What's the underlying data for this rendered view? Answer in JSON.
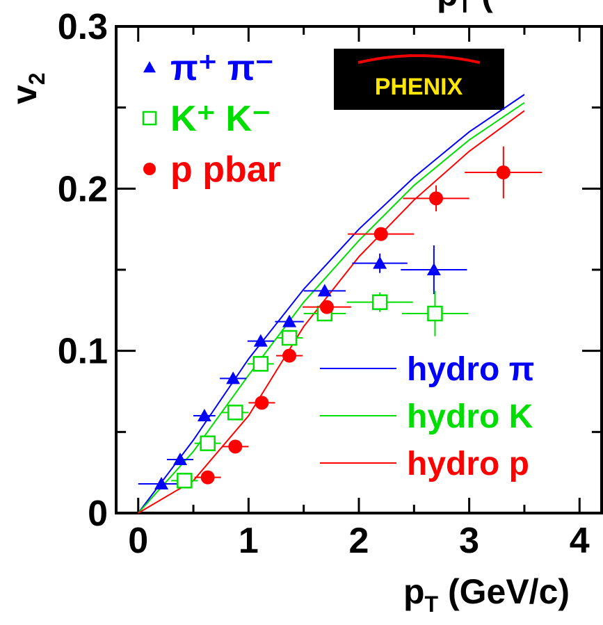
{
  "chart_data": {
    "type": "scatter",
    "title": {
      "main": "p",
      "sub": "T",
      "rest": "("
    },
    "xlabel": {
      "main": "p",
      "sub": "T",
      "rest": " (GeV/c)"
    },
    "ylabel": {
      "main": "v",
      "sub": "2"
    },
    "logo": "PHENIX",
    "xlim": [
      -0.2,
      4.2
    ],
    "ylim": [
      0,
      0.3
    ],
    "xticks": [
      0,
      1,
      2,
      3,
      4
    ],
    "yticks": [
      0,
      0.1,
      0.2,
      0.3
    ],
    "xminor": [
      0.5,
      1.5,
      2.5,
      3.5
    ],
    "yminor": [
      0.05,
      0.15,
      0.25
    ],
    "series": [
      {
        "name": "π⁺ π⁻",
        "color": "#0000ff",
        "marker": "triangle",
        "x": [
          0.21,
          0.38,
          0.6,
          0.86,
          1.11,
          1.37,
          1.69,
          2.19,
          2.68
        ],
        "values": [
          0.018,
          0.033,
          0.06,
          0.083,
          0.106,
          0.118,
          0.137,
          0.154,
          0.15
        ],
        "xerr": [
          0.21,
          0.12,
          0.1,
          0.12,
          0.12,
          0.13,
          0.19,
          0.25,
          0.3
        ],
        "yerr": [
          0.001,
          0.001,
          0.001,
          0.002,
          0.002,
          0.002,
          0.003,
          0.006,
          0.015
        ]
      },
      {
        "name": "K⁺ K⁻",
        "color": "#00dd00",
        "marker": "square",
        "x": [
          0.42,
          0.63,
          0.88,
          1.11,
          1.37,
          1.69,
          2.19,
          2.69
        ],
        "values": [
          0.02,
          0.043,
          0.062,
          0.092,
          0.108,
          0.123,
          0.13,
          0.123
        ],
        "xerr": [
          0.12,
          0.12,
          0.12,
          0.12,
          0.12,
          0.19,
          0.3,
          0.3
        ],
        "yerr": [
          0.002,
          0.002,
          0.002,
          0.003,
          0.003,
          0.003,
          0.006,
          0.014
        ]
      },
      {
        "name": "p  pbar",
        "color": "#ff0000",
        "marker": "circle",
        "x": [
          0.63,
          0.88,
          1.12,
          1.37,
          1.71,
          2.2,
          2.7,
          3.31
        ],
        "values": [
          0.022,
          0.041,
          0.068,
          0.097,
          0.127,
          0.172,
          0.194,
          0.21
        ],
        "xerr": [
          0.12,
          0.12,
          0.12,
          0.12,
          0.22,
          0.3,
          0.3,
          0.35
        ],
        "yerr": [
          0.001,
          0.002,
          0.002,
          0.003,
          0.003,
          0.004,
          0.008,
          0.016
        ]
      }
    ],
    "curves": [
      {
        "name": "hydro π",
        "color": "#0000ff",
        "x": [
          0,
          0.5,
          1,
          1.5,
          2,
          2.5,
          3,
          3.5
        ],
        "values": [
          0,
          0.045,
          0.095,
          0.138,
          0.175,
          0.207,
          0.235,
          0.258
        ]
      },
      {
        "name": "hydro K",
        "color": "#00dd00",
        "x": [
          0,
          0.5,
          1,
          1.5,
          2,
          2.5,
          3,
          3.5
        ],
        "values": [
          0,
          0.038,
          0.085,
          0.13,
          0.168,
          0.202,
          0.23,
          0.253
        ]
      },
      {
        "name": "hydro p",
        "color": "#ff0000",
        "x": [
          0,
          0.5,
          1,
          1.5,
          2,
          2.5,
          3,
          3.5
        ],
        "values": [
          0,
          0.02,
          0.06,
          0.115,
          0.158,
          0.193,
          0.223,
          0.248
        ]
      }
    ]
  }
}
